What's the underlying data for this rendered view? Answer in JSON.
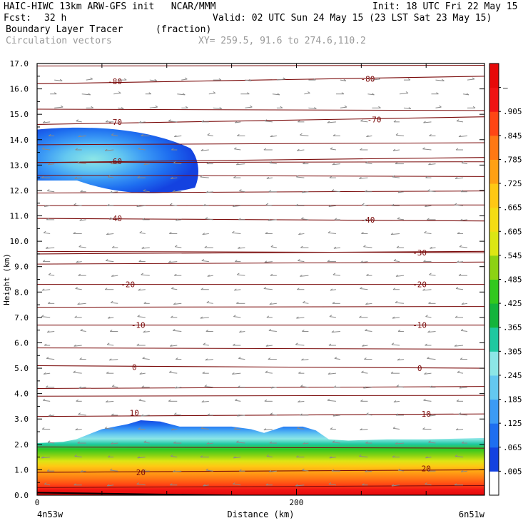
{
  "header": {
    "line1_left": "HAIC-HIWC 13km ARW-GFS init   NCAR/MMM",
    "line1_right": "Init: 18 UTC Fri 22 May 15",
    "fcst_label": "Fcst:",
    "fcst_value": "32 h",
    "valid": "Valid: 02 UTC Sun 24 May 15 (23 LST Sat 23 May 15)",
    "field1_name": "Boundary Layer Tracer",
    "field1_units": "(fraction)",
    "field2_name": "Circulation vectors",
    "xy_text": "XY= 259.5, 91.6 to 274.6,110.2"
  },
  "chart_data": {
    "type": "contour",
    "ylabel": "Height (km)",
    "xlabel": "Distance (km)",
    "ylim": [
      0,
      17
    ],
    "xlim": [
      0,
      345
    ],
    "y_ticks": [
      "0.0",
      "1.0",
      "2.0",
      "3.0",
      "4.0",
      "5.0",
      "6.0",
      "7.0",
      "8.0",
      "9.0",
      "10.0",
      "11.0",
      "12.0",
      "13.0",
      "14.0",
      "15.0",
      "16.0",
      "17.0"
    ],
    "x_ticks": [
      {
        "value": 0,
        "label": "0"
      },
      {
        "value": 200,
        "label": "200"
      }
    ],
    "left_endpoint": "4n53w",
    "right_endpoint": "6n51w",
    "colorbar": {
      "labels": [
        ".005",
        ".065",
        ".125",
        ".185",
        ".245",
        ".305",
        ".365",
        ".425",
        ".485",
        ".545",
        ".605",
        ".665",
        ".725",
        ".785",
        ".845",
        ".905",
        "–"
      ],
      "colors": [
        "#ffffff",
        "#1442e0",
        "#1e6ef0",
        "#3c9bf5",
        "#64c8f0",
        "#8ce6e6",
        "#1ec8a0",
        "#14b43c",
        "#32c81e",
        "#8cd214",
        "#dce614",
        "#f5dc14",
        "#ffc814",
        "#ffa014",
        "#ff7814",
        "#ff4614",
        "#f01414",
        "#e60a0a"
      ]
    },
    "temperature_contours": [
      {
        "label": "-80",
        "height_left": 16.2,
        "height_right": 16.5,
        "label_positions": [
          {
            "x": 60,
            "y": 16.3
          },
          {
            "x": 255,
            "y": 16.4
          }
        ]
      },
      {
        "label": "-70",
        "height_left": 14.6,
        "height_right": 14.9,
        "label_positions": [
          {
            "x": 60,
            "y": 14.7
          },
          {
            "x": 260,
            "y": 14.8
          }
        ]
      },
      {
        "label": "-60",
        "height_left": 13.1,
        "height_right": 13.3,
        "label_positions": [
          {
            "x": 60,
            "y": 13.15
          }
        ]
      },
      {
        "label": "-40",
        "height_left": 10.9,
        "height_right": 10.8,
        "label_positions": [
          {
            "x": 60,
            "y": 10.9
          },
          {
            "x": 255,
            "y": 10.85
          }
        ]
      },
      {
        "label": "-30",
        "height_left": 9.5,
        "height_right": 9.6,
        "label_positions": [
          {
            "x": 295,
            "y": 9.55
          }
        ]
      },
      {
        "label": "-20",
        "height_left": 8.3,
        "height_right": 8.3,
        "label_positions": [
          {
            "x": 70,
            "y": 8.3
          },
          {
            "x": 295,
            "y": 8.3
          }
        ]
      },
      {
        "label": "-10",
        "height_left": 6.7,
        "height_right": 6.7,
        "label_positions": [
          {
            "x": 78,
            "y": 6.7
          },
          {
            "x": 295,
            "y": 6.7
          }
        ]
      },
      {
        "label": "0",
        "height_left": 5.1,
        "height_right": 5.0,
        "label_positions": [
          {
            "x": 75,
            "y": 5.05
          },
          {
            "x": 295,
            "y": 5.0
          }
        ]
      },
      {
        "label": "10",
        "height_left": 3.1,
        "height_right": 3.2,
        "label_positions": [
          {
            "x": 75,
            "y": 3.25
          },
          {
            "x": 300,
            "y": 3.2
          }
        ]
      },
      {
        "label": "20",
        "height_left": 0.9,
        "height_right": 1.0,
        "label_positions": [
          {
            "x": 80,
            "y": 0.9
          },
          {
            "x": 300,
            "y": 1.05
          }
        ]
      }
    ],
    "contour_lines_km": [
      0.3,
      1.9,
      3.9,
      4.2,
      5.8,
      7.4,
      9.1,
      9.6,
      11.4,
      11.9,
      12.6,
      13.1,
      13.8,
      15.2,
      16.9
    ],
    "tracer_upper": {
      "x_extent": [
        0,
        125
      ],
      "top_km": 14.5,
      "bottom_km": 12.0,
      "core_x": 45,
      "core_y": 13.2
    },
    "tracer_boundary_top_km": [
      [
        0,
        2.05
      ],
      [
        20,
        2.1
      ],
      [
        30,
        2.2
      ],
      [
        50,
        2.6
      ],
      [
        70,
        2.8
      ],
      [
        80,
        2.95
      ],
      [
        95,
        2.9
      ],
      [
        110,
        2.7
      ],
      [
        130,
        2.7
      ],
      [
        150,
        2.7
      ],
      [
        165,
        2.6
      ],
      [
        175,
        2.45
      ],
      [
        190,
        2.7
      ],
      [
        205,
        2.7
      ],
      [
        215,
        2.55
      ],
      [
        225,
        2.2
      ],
      [
        240,
        2.15
      ],
      [
        270,
        2.2
      ],
      [
        300,
        2.2
      ],
      [
        345,
        2.25
      ]
    ]
  }
}
